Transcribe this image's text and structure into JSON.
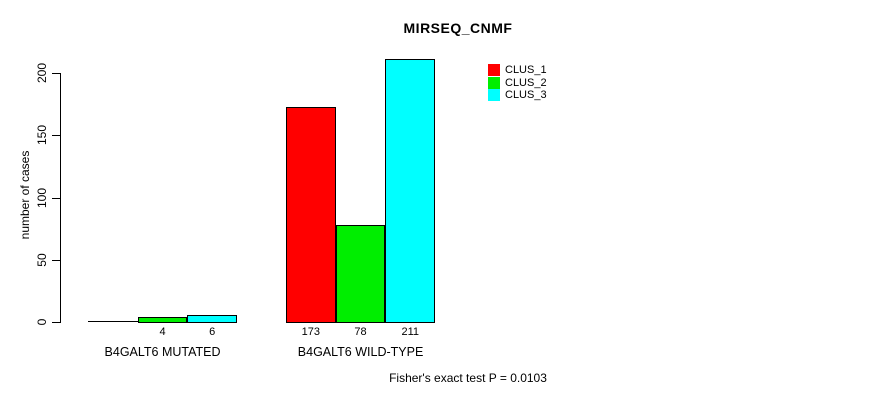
{
  "chart_data": {
    "type": "bar",
    "title": "MIRSEQ_CNMF",
    "ylabel": "number of cases",
    "xlabel": "",
    "ylim": [
      0,
      200
    ],
    "yticks": [
      0,
      50,
      100,
      150,
      200
    ],
    "categories": [
      "B4GALT6 MUTATED",
      "B4GALT6 WILD-TYPE"
    ],
    "series": [
      {
        "name": "CLUS_1",
        "color": "#ff0000",
        "values": [
          0,
          173
        ]
      },
      {
        "name": "CLUS_2",
        "color": "#00ee00",
        "values": [
          4,
          78
        ]
      },
      {
        "name": "CLUS_3",
        "color": "#00ffff",
        "values": [
          6,
          211
        ]
      }
    ],
    "bar_value_labels": [
      [
        "",
        "4",
        "6"
      ],
      [
        "173",
        "78",
        "211"
      ]
    ],
    "legend": {
      "position": "top-right",
      "entries": [
        "CLUS_1",
        "CLUS_2",
        "CLUS_3"
      ]
    },
    "grid": false,
    "annotation": "Fisher's exact test P = 0.0103"
  }
}
